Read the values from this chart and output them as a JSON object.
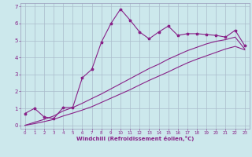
{
  "xlabel": "Windchill (Refroidissement éolien,°C)",
  "background_color": "#cce8ec",
  "grid_color": "#aabccc",
  "line_color": "#882288",
  "xlim": [
    -0.5,
    23.5
  ],
  "ylim": [
    -0.2,
    7.2
  ],
  "xticks": [
    0,
    1,
    2,
    3,
    4,
    5,
    6,
    7,
    8,
    9,
    10,
    11,
    12,
    13,
    14,
    15,
    16,
    17,
    18,
    19,
    20,
    21,
    22,
    23
  ],
  "yticks": [
    0,
    1,
    2,
    3,
    4,
    5,
    6,
    7
  ],
  "line1_x": [
    0,
    1,
    2,
    3,
    4,
    5,
    6,
    7,
    8,
    9,
    10,
    11,
    12,
    13,
    14,
    15,
    16,
    17,
    18,
    19,
    20,
    21,
    22,
    23
  ],
  "line1_y": [
    0.7,
    1.0,
    0.5,
    0.4,
    1.05,
    1.05,
    2.8,
    3.3,
    4.9,
    6.0,
    6.85,
    6.2,
    5.5,
    5.1,
    5.5,
    5.85,
    5.3,
    5.4,
    5.4,
    5.35,
    5.3,
    5.2,
    5.6,
    4.7
  ],
  "line2_x": [
    0,
    1,
    2,
    3,
    4,
    5,
    6,
    7,
    8,
    9,
    10,
    11,
    12,
    13,
    14,
    15,
    16,
    17,
    18,
    19,
    20,
    21,
    22,
    23
  ],
  "line2_y": [
    0.0,
    0.18,
    0.35,
    0.55,
    0.85,
    1.05,
    1.3,
    1.58,
    1.85,
    2.15,
    2.45,
    2.75,
    3.05,
    3.35,
    3.6,
    3.9,
    4.15,
    4.4,
    4.6,
    4.8,
    4.95,
    5.05,
    5.2,
    4.5
  ],
  "line3_x": [
    0,
    1,
    2,
    3,
    4,
    5,
    6,
    7,
    8,
    9,
    10,
    11,
    12,
    13,
    14,
    15,
    16,
    17,
    18,
    19,
    20,
    21,
    22,
    23
  ],
  "line3_y": [
    0.0,
    0.1,
    0.22,
    0.35,
    0.55,
    0.72,
    0.9,
    1.1,
    1.35,
    1.6,
    1.85,
    2.1,
    2.38,
    2.65,
    2.9,
    3.15,
    3.42,
    3.68,
    3.9,
    4.1,
    4.3,
    4.5,
    4.65,
    4.45
  ],
  "line_width": 0.8,
  "marker_size": 2.5
}
